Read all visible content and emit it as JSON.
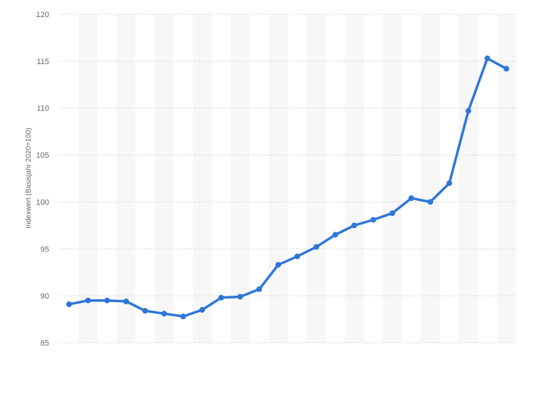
{
  "colors": {
    "line": "#2f76d8",
    "grid": "#d6d6d6",
    "band": "#f7f7f7",
    "axis_text": "#666666"
  },
  "chart_data": {
    "type": "line",
    "title": "",
    "xlabel": "",
    "ylabel": "Indexwert (Basisjahr 2020=100)",
    "ylim": [
      85,
      120
    ],
    "yticks": [
      85,
      90,
      95,
      100,
      105,
      110,
      115,
      120
    ],
    "grid": true,
    "legend": "none",
    "x": [
      1,
      2,
      3,
      4,
      5,
      6,
      7,
      8,
      9,
      10,
      11,
      12,
      13,
      14,
      15,
      16,
      17,
      18,
      19,
      20,
      21,
      22,
      23,
      24
    ],
    "series": [
      {
        "values": [
          89.1,
          89.5,
          89.5,
          89.4,
          88.4,
          88.1,
          87.8,
          88.5,
          89.8,
          89.9,
          90.7,
          93.3,
          94.2,
          95.2,
          96.5,
          97.5,
          98.1,
          98.8,
          100.4,
          100.0,
          102.0,
          109.7,
          115.3,
          114.2
        ]
      }
    ]
  }
}
